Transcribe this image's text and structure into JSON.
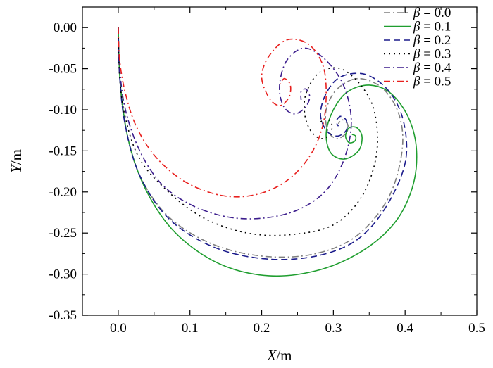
{
  "chart_data": {
    "type": "line",
    "title": "",
    "xlabel": {
      "var": "X",
      "unit": "/m"
    },
    "ylabel": {
      "var": "Y",
      "unit": "/m"
    },
    "xlim": [
      -0.05,
      0.5
    ],
    "ylim": [
      -0.35,
      0.025
    ],
    "x_ticks": [
      "0.0",
      "0.1",
      "0.2",
      "0.3",
      "0.4",
      "0.5"
    ],
    "x_tick_values": [
      0.0,
      0.1,
      0.2,
      0.3,
      0.4,
      0.5
    ],
    "y_ticks": [
      "0.00",
      "-0.05",
      "-0.10",
      "-0.15",
      "-0.20",
      "-0.25",
      "-0.30",
      "-0.35"
    ],
    "y_tick_values": [
      0.0,
      -0.05,
      -0.1,
      -0.15,
      -0.2,
      -0.25,
      -0.3,
      -0.35
    ],
    "grid": false,
    "legend_position": "top-right",
    "series": [
      {
        "name": "β = 0.0",
        "label_var": "β",
        "label_value": "= 0.0",
        "color": "#7f7f7f",
        "style": "dashdot",
        "points": [
          [
            0,
            0
          ],
          [
            0.002,
            -0.06
          ],
          [
            0.01,
            -0.12
          ],
          [
            0.03,
            -0.18
          ],
          [
            0.07,
            -0.23
          ],
          [
            0.13,
            -0.263
          ],
          [
            0.2,
            -0.278
          ],
          [
            0.27,
            -0.276
          ],
          [
            0.33,
            -0.255
          ],
          [
            0.375,
            -0.21
          ],
          [
            0.395,
            -0.155
          ],
          [
            0.393,
            -0.11
          ],
          [
            0.37,
            -0.075
          ],
          [
            0.335,
            -0.062
          ],
          [
            0.305,
            -0.075
          ],
          [
            0.29,
            -0.1
          ],
          [
            0.292,
            -0.125
          ],
          [
            0.305,
            -0.135
          ],
          [
            0.318,
            -0.128
          ],
          [
            0.32,
            -0.118
          ],
          [
            0.312,
            -0.112
          ],
          [
            0.307,
            -0.117
          ]
        ]
      },
      {
        "name": "β = 0.1",
        "label_var": "β",
        "label_value": "= 0.1",
        "color": "#1f9e2f",
        "style": "solid",
        "points": [
          [
            0,
            0
          ],
          [
            0.003,
            -0.07
          ],
          [
            0.015,
            -0.14
          ],
          [
            0.04,
            -0.2
          ],
          [
            0.08,
            -0.25
          ],
          [
            0.14,
            -0.287
          ],
          [
            0.21,
            -0.302
          ],
          [
            0.28,
            -0.295
          ],
          [
            0.34,
            -0.272
          ],
          [
            0.385,
            -0.238
          ],
          [
            0.41,
            -0.195
          ],
          [
            0.416,
            -0.15
          ],
          [
            0.405,
            -0.11
          ],
          [
            0.38,
            -0.08
          ],
          [
            0.35,
            -0.07
          ],
          [
            0.32,
            -0.078
          ],
          [
            0.3,
            -0.1
          ],
          [
            0.29,
            -0.128
          ],
          [
            0.296,
            -0.152
          ],
          [
            0.315,
            -0.16
          ],
          [
            0.335,
            -0.15
          ],
          [
            0.34,
            -0.133
          ],
          [
            0.333,
            -0.122
          ],
          [
            0.322,
            -0.122
          ],
          [
            0.317,
            -0.132
          ],
          [
            0.322,
            -0.14
          ],
          [
            0.33,
            -0.138
          ],
          [
            0.331,
            -0.132
          ],
          [
            0.326,
            -0.13
          ]
        ]
      },
      {
        "name": "β = 0.2",
        "label_var": "β",
        "label_value": "= 0.2",
        "color": "#1c1c8c",
        "style": "dashed",
        "points": [
          [
            0,
            0
          ],
          [
            0.002,
            -0.06
          ],
          [
            0.01,
            -0.12
          ],
          [
            0.03,
            -0.18
          ],
          [
            0.07,
            -0.232
          ],
          [
            0.13,
            -0.266
          ],
          [
            0.2,
            -0.281
          ],
          [
            0.27,
            -0.279
          ],
          [
            0.33,
            -0.26
          ],
          [
            0.372,
            -0.22
          ],
          [
            0.4,
            -0.165
          ],
          [
            0.398,
            -0.115
          ],
          [
            0.378,
            -0.078
          ],
          [
            0.345,
            -0.057
          ],
          [
            0.31,
            -0.06
          ],
          [
            0.29,
            -0.08
          ],
          [
            0.282,
            -0.105
          ],
          [
            0.29,
            -0.125
          ],
          [
            0.305,
            -0.132
          ],
          [
            0.318,
            -0.125
          ],
          [
            0.318,
            -0.113
          ],
          [
            0.31,
            -0.108
          ],
          [
            0.304,
            -0.114
          ],
          [
            0.307,
            -0.12
          ]
        ]
      },
      {
        "name": "β = 0.3",
        "label_var": "β",
        "label_value": "= 0.3",
        "color": "#000000",
        "style": "dotted",
        "points": [
          [
            0,
            0
          ],
          [
            0.002,
            -0.06
          ],
          [
            0.01,
            -0.11
          ],
          [
            0.03,
            -0.16
          ],
          [
            0.07,
            -0.2
          ],
          [
            0.12,
            -0.232
          ],
          [
            0.18,
            -0.25
          ],
          [
            0.24,
            -0.252
          ],
          [
            0.3,
            -0.24
          ],
          [
            0.34,
            -0.205
          ],
          [
            0.36,
            -0.155
          ],
          [
            0.358,
            -0.105
          ],
          [
            0.34,
            -0.072
          ],
          [
            0.31,
            -0.05
          ],
          [
            0.28,
            -0.055
          ],
          [
            0.262,
            -0.08
          ],
          [
            0.26,
            -0.105
          ],
          [
            0.268,
            -0.125
          ],
          [
            0.282,
            -0.135
          ],
          [
            0.295,
            -0.13
          ],
          [
            0.298,
            -0.118
          ],
          [
            0.29,
            -0.11
          ],
          [
            0.282,
            -0.115
          ]
        ]
      },
      {
        "name": "β = 0.4",
        "label_var": "β",
        "label_value": "= 0.4",
        "color": "#3b1c8c",
        "style": "dashdot",
        "points": [
          [
            0,
            0
          ],
          [
            0.002,
            -0.05
          ],
          [
            0.01,
            -0.1
          ],
          [
            0.03,
            -0.15
          ],
          [
            0.06,
            -0.19
          ],
          [
            0.1,
            -0.215
          ],
          [
            0.15,
            -0.23
          ],
          [
            0.2,
            -0.232
          ],
          [
            0.25,
            -0.222
          ],
          [
            0.29,
            -0.198
          ],
          [
            0.315,
            -0.16
          ],
          [
            0.325,
            -0.115
          ],
          [
            0.315,
            -0.072
          ],
          [
            0.29,
            -0.04
          ],
          [
            0.26,
            -0.025
          ],
          [
            0.235,
            -0.04
          ],
          [
            0.225,
            -0.07
          ],
          [
            0.23,
            -0.095
          ],
          [
            0.245,
            -0.105
          ],
          [
            0.26,
            -0.098
          ],
          [
            0.267,
            -0.085
          ],
          [
            0.262,
            -0.075
          ],
          [
            0.255,
            -0.078
          ],
          [
            0.255,
            -0.088
          ]
        ]
      },
      {
        "name": "β = 0.5",
        "label_var": "β",
        "label_value": "= 0.5",
        "color": "#e8201e",
        "style": "dashdot",
        "points": [
          [
            0,
            0
          ],
          [
            0.002,
            -0.04
          ],
          [
            0.01,
            -0.08
          ],
          [
            0.025,
            -0.12
          ],
          [
            0.05,
            -0.155
          ],
          [
            0.085,
            -0.183
          ],
          [
            0.125,
            -0.2
          ],
          [
            0.165,
            -0.206
          ],
          [
            0.205,
            -0.2
          ],
          [
            0.24,
            -0.183
          ],
          [
            0.268,
            -0.155
          ],
          [
            0.285,
            -0.12
          ],
          [
            0.29,
            -0.08
          ],
          [
            0.285,
            -0.045
          ],
          [
            0.265,
            -0.02
          ],
          [
            0.235,
            -0.015
          ],
          [
            0.21,
            -0.035
          ],
          [
            0.2,
            -0.06
          ],
          [
            0.21,
            -0.085
          ],
          [
            0.225,
            -0.095
          ],
          [
            0.238,
            -0.085
          ],
          [
            0.24,
            -0.07
          ],
          [
            0.232,
            -0.062
          ],
          [
            0.226,
            -0.068
          ]
        ]
      }
    ]
  }
}
